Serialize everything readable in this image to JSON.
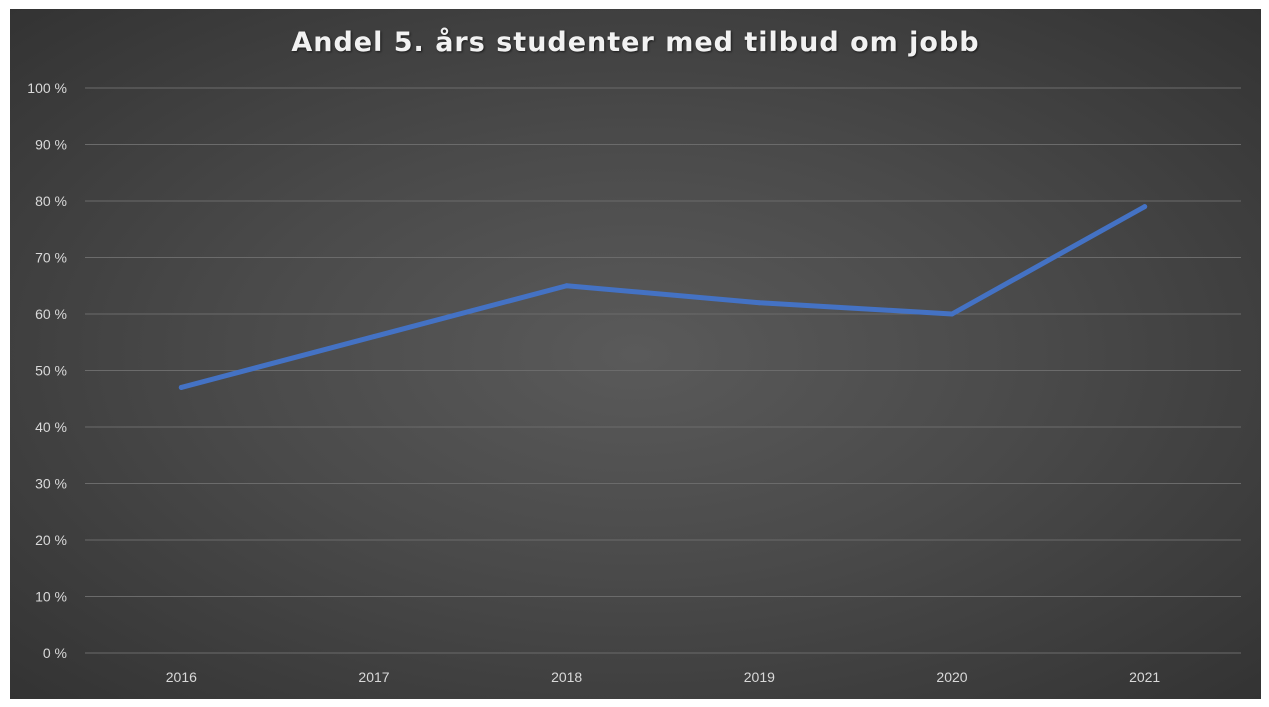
{
  "chart_data": {
    "type": "line",
    "title": "Andel 5. års studenter med tilbud om jobb",
    "categories": [
      "2016",
      "2017",
      "2018",
      "2019",
      "2020",
      "2021"
    ],
    "series": [
      {
        "values": [
          47,
          56,
          65,
          62,
          60,
          79
        ],
        "color": "#4472c4"
      }
    ],
    "ylim": [
      0,
      100
    ],
    "yticks": [
      {
        "value": 0,
        "label": "0 %"
      },
      {
        "value": 10,
        "label": "10 %"
      },
      {
        "value": 20,
        "label": "20 %"
      },
      {
        "value": 30,
        "label": "30 %"
      },
      {
        "value": 40,
        "label": "40 %"
      },
      {
        "value": 50,
        "label": "50 %"
      },
      {
        "value": 60,
        "label": "60 %"
      },
      {
        "value": 70,
        "label": "70 %"
      },
      {
        "value": 80,
        "label": "80 %"
      },
      {
        "value": 90,
        "label": "90 %"
      },
      {
        "value": 100,
        "label": "100 %"
      }
    ],
    "grid": true,
    "legend": "none"
  }
}
